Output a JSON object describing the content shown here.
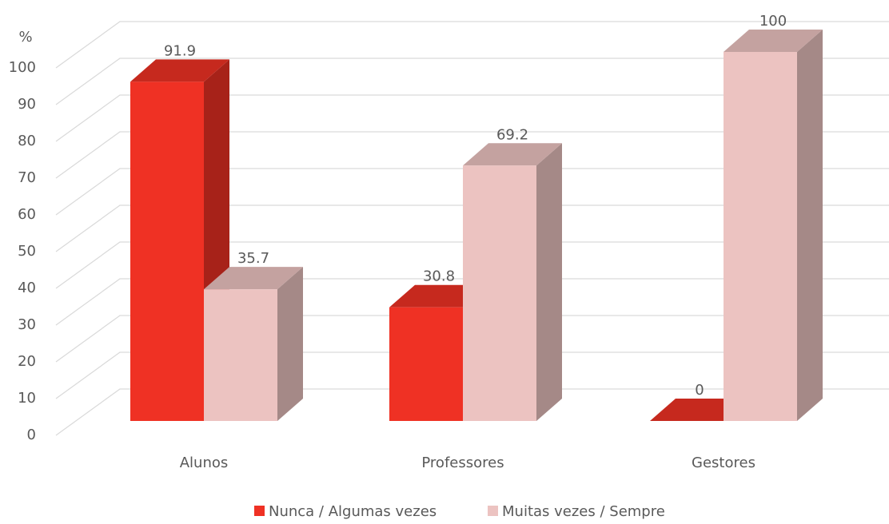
{
  "chart_data": {
    "type": "bar3d",
    "y_label": "%",
    "categories": [
      "Alunos",
      "Professores",
      "Gestores"
    ],
    "series": [
      {
        "name": "Nunca / Algumas vezes",
        "color": "#ef3124",
        "values": [
          91.9,
          30.8,
          0
        ]
      },
      {
        "name": "Muitas vezes / Sempre",
        "color": "#ecc3c1",
        "values": [
          35.7,
          69.2,
          100
        ]
      }
    ],
    "ylim": [
      0,
      100
    ],
    "yticks": [
      0,
      10,
      20,
      30,
      40,
      50,
      60,
      70,
      80,
      90,
      100
    ],
    "grid": true,
    "legend": "bottom"
  }
}
